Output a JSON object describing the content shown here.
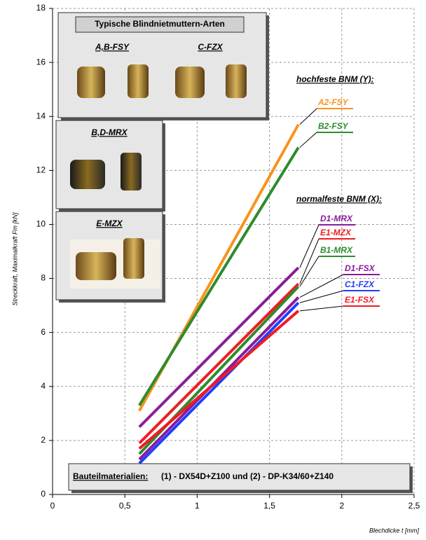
{
  "chart_data": {
    "type": "line",
    "y_label": "Streckkraft, Maximalkraft Fm [kN]",
    "x_label": "Blechdicke t [mm]",
    "x": [
      0.6,
      1.7
    ],
    "xlim": [
      0,
      2.5
    ],
    "xticks": [
      0,
      {
        "value": 0.5,
        "label": "0,5"
      },
      1,
      {
        "value": 1.5,
        "label": "1,5"
      },
      2,
      {
        "value": 2.5,
        "label": "2,5"
      }
    ],
    "ylim": [
      0,
      18
    ],
    "yticks": [
      0,
      2,
      4,
      6,
      8,
      10,
      12,
      14,
      16,
      18
    ],
    "grid": true,
    "group_labels": [
      "hochfeste BNM (Y):",
      "normalfeste BNM (X):"
    ],
    "series": [
      {
        "name": "A2-FSY",
        "color": "#f7941d",
        "values": [
          3.1,
          13.7
        ]
      },
      {
        "name": "B2-FSY",
        "color": "#2e8b2e",
        "values": [
          3.3,
          12.85
        ]
      },
      {
        "name": "D1-MRX",
        "color": "#8b1a9b",
        "values": [
          2.5,
          8.4
        ]
      },
      {
        "name": "E1-MZX",
        "color": "#ee1c24",
        "values": [
          1.9,
          7.8
        ]
      },
      {
        "name": "B1-MRX",
        "color": "#2e8b2e",
        "values": [
          1.5,
          7.7
        ]
      },
      {
        "name": "D1-FSX",
        "color": "#8b1a9b",
        "values": [
          1.3,
          7.3
        ]
      },
      {
        "name": "C1-FZX",
        "color": "#1f3fff",
        "values": [
          1.15,
          7.1
        ]
      },
      {
        "name": "E1-FSX",
        "color": "#ee1c24",
        "values": [
          1.7,
          6.8
        ]
      }
    ],
    "boxes": {
      "title": "Typische Blindnietmuttern-Arten",
      "labels": [
        "A,B-FSY",
        "C-FZX",
        "B,D-MRX",
        "E-MZX"
      ]
    },
    "materials": {
      "label": "Bauteilmaterialien:",
      "text": "(1) - DX54D+Z100 und (2) - DP-K34/60+Z140"
    }
  }
}
